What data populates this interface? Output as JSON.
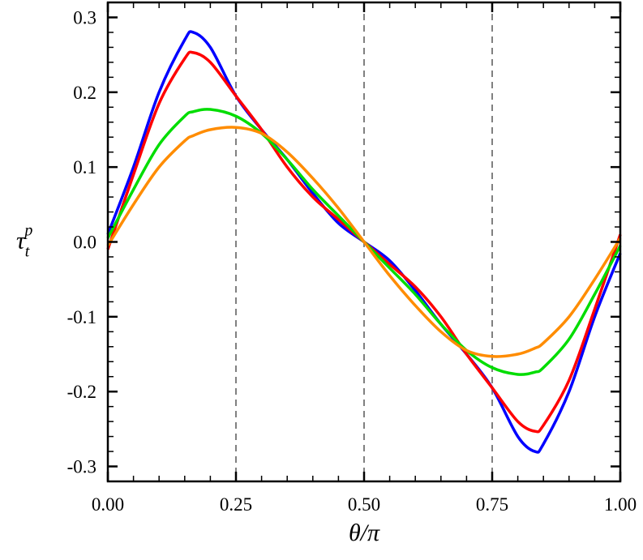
{
  "chart_data": {
    "type": "line",
    "xlabel": "θ/π",
    "ylabel": {
      "base": "τ",
      "sub": "t",
      "sup": "p"
    },
    "xlim": [
      0,
      1
    ],
    "ylim": [
      -0.32,
      0.32
    ],
    "xticks": [
      "0.00",
      "0.25",
      "0.50",
      "0.75",
      "1.00"
    ],
    "yticks": [
      "0.3",
      "0.2",
      "0.1",
      "0.0",
      "-0.1",
      "-0.2",
      "-0.3"
    ],
    "vlines": [
      0.25,
      0.5,
      0.75
    ],
    "grid": false,
    "x": [
      0,
      0.05,
      0.1,
      0.15,
      0.1667,
      0.2,
      0.25,
      0.3,
      0.35,
      0.4,
      0.45,
      0.5,
      0.55,
      0.6,
      0.65,
      0.7,
      0.75,
      0.8,
      0.8333,
      0.85,
      0.9,
      0.95,
      1
    ],
    "series": [
      {
        "color": "#0000ff",
        "values": [
          0.01,
          0.1,
          0.2,
          0.27,
          0.28,
          0.26,
          0.195,
          0.15,
          0.11,
          0.065,
          0.025,
          0,
          -0.025,
          -0.065,
          -0.11,
          -0.15,
          -0.195,
          -0.26,
          -0.28,
          -0.27,
          -0.2,
          -0.1,
          -0.015
        ]
      },
      {
        "color": "#ff0000",
        "values": [
          -0.01,
          0.09,
          0.185,
          0.245,
          0.253,
          0.24,
          0.195,
          0.15,
          0.1,
          0.06,
          0.03,
          0,
          -0.03,
          -0.06,
          -0.1,
          -0.15,
          -0.195,
          -0.24,
          -0.253,
          -0.245,
          -0.185,
          -0.09,
          0.01
        ]
      },
      {
        "color": "#00dd00",
        "values": [
          0.005,
          0.07,
          0.13,
          0.168,
          0.174,
          0.177,
          0.168,
          0.145,
          0.11,
          0.07,
          0.035,
          0,
          -0.035,
          -0.07,
          -0.11,
          -0.145,
          -0.168,
          -0.177,
          -0.174,
          -0.168,
          -0.13,
          -0.07,
          -0.005
        ]
      },
      {
        "color": "#ff8c00",
        "values": [
          -0.005,
          0.05,
          0.1,
          0.135,
          0.142,
          0.15,
          0.153,
          0.145,
          0.12,
          0.085,
          0.045,
          0,
          -0.045,
          -0.085,
          -0.12,
          -0.145,
          -0.153,
          -0.15,
          -0.142,
          -0.135,
          -0.1,
          -0.05,
          0.005
        ]
      }
    ]
  }
}
